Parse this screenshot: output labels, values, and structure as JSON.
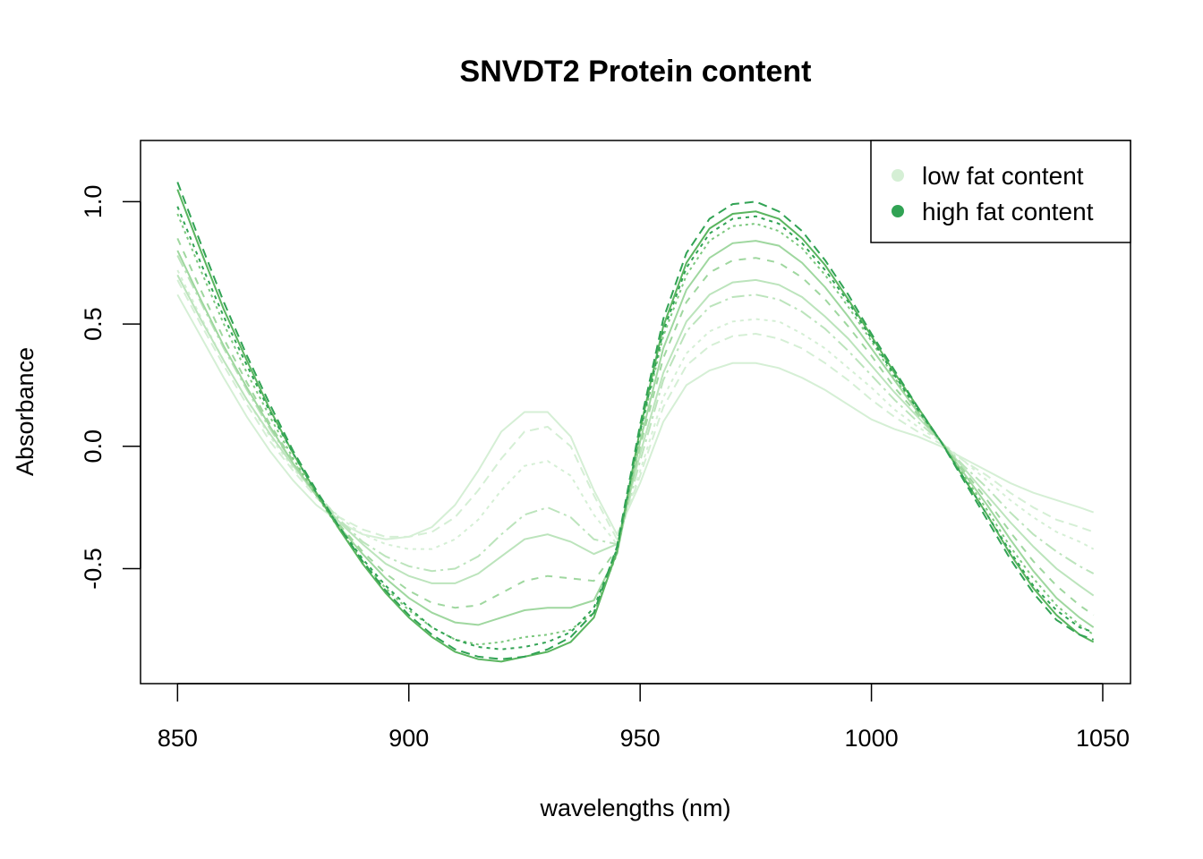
{
  "chart_data": {
    "type": "line",
    "title": "SNVDT2 Protein content",
    "xlabel": "wavelengths (nm)",
    "ylabel": "Absorbance",
    "xlim": [
      842,
      1056
    ],
    "ylim": [
      -0.97,
      1.25
    ],
    "x_ticks": [
      850,
      900,
      950,
      1000,
      1050
    ],
    "x_tick_labels": [
      "850",
      "900",
      "950",
      "1000",
      "1050"
    ],
    "y_ticks": [
      -0.5,
      0.0,
      0.5,
      1.0
    ],
    "y_tick_labels": [
      "-0.5",
      "0.0",
      "0.5",
      "1.0"
    ],
    "grid": false,
    "legend_position": "top-right",
    "legend": [
      {
        "label": "low fat content",
        "color": "#d5efd5"
      },
      {
        "label": "high fat content",
        "color": "#31a354"
      }
    ],
    "x": [
      850,
      855,
      860,
      865,
      870,
      875,
      880,
      885,
      890,
      895,
      900,
      905,
      910,
      915,
      920,
      925,
      930,
      935,
      940,
      945,
      950,
      955,
      960,
      965,
      970,
      975,
      980,
      985,
      990,
      995,
      1000,
      1005,
      1010,
      1015,
      1020,
      1025,
      1030,
      1035,
      1040,
      1045,
      1048
    ],
    "series": [
      {
        "color": "#d5efd5",
        "values": [
          0.62,
          0.45,
          0.28,
          0.12,
          -0.02,
          -0.14,
          -0.24,
          -0.31,
          -0.36,
          -0.38,
          -0.37,
          -0.33,
          -0.24,
          -0.1,
          0.06,
          0.14,
          0.14,
          0.04,
          -0.18,
          -0.36,
          -0.15,
          0.1,
          0.25,
          0.31,
          0.34,
          0.34,
          0.32,
          0.28,
          0.23,
          0.17,
          0.11,
          0.07,
          0.04,
          0.0,
          -0.05,
          -0.1,
          -0.15,
          -0.19,
          -0.22,
          -0.25,
          -0.27
        ]
      },
      {
        "color": "#d5efd5",
        "values": [
          0.68,
          0.5,
          0.33,
          0.17,
          0.02,
          -0.1,
          -0.21,
          -0.29,
          -0.34,
          -0.37,
          -0.37,
          -0.35,
          -0.29,
          -0.18,
          -0.05,
          0.06,
          0.08,
          0.0,
          -0.2,
          -0.38,
          -0.12,
          0.16,
          0.33,
          0.41,
          0.45,
          0.46,
          0.44,
          0.4,
          0.34,
          0.27,
          0.19,
          0.12,
          0.06,
          0.01,
          -0.06,
          -0.12,
          -0.19,
          -0.25,
          -0.3,
          -0.33,
          -0.35
        ]
      },
      {
        "color": "#d5efd5",
        "values": [
          0.72,
          0.53,
          0.35,
          0.19,
          0.04,
          -0.09,
          -0.2,
          -0.29,
          -0.36,
          -0.4,
          -0.42,
          -0.42,
          -0.38,
          -0.3,
          -0.18,
          -0.08,
          -0.06,
          -0.12,
          -0.28,
          -0.4,
          -0.1,
          0.2,
          0.38,
          0.47,
          0.51,
          0.52,
          0.51,
          0.46,
          0.4,
          0.32,
          0.24,
          0.15,
          0.08,
          0.02,
          -0.06,
          -0.14,
          -0.22,
          -0.29,
          -0.35,
          -0.39,
          -0.42
        ]
      },
      {
        "color": "#bce4bc",
        "values": [
          0.78,
          0.59,
          0.4,
          0.23,
          0.07,
          -0.07,
          -0.19,
          -0.3,
          -0.39,
          -0.45,
          -0.49,
          -0.51,
          -0.5,
          -0.45,
          -0.36,
          -0.28,
          -0.25,
          -0.29,
          -0.38,
          -0.4,
          -0.06,
          0.27,
          0.47,
          0.57,
          0.61,
          0.62,
          0.6,
          0.55,
          0.48,
          0.39,
          0.29,
          0.19,
          0.1,
          0.02,
          -0.08,
          -0.17,
          -0.27,
          -0.36,
          -0.43,
          -0.49,
          -0.52
        ]
      },
      {
        "color": "#bce4bc",
        "values": [
          0.7,
          0.52,
          0.35,
          0.19,
          0.05,
          -0.08,
          -0.2,
          -0.31,
          -0.4,
          -0.48,
          -0.53,
          -0.56,
          -0.56,
          -0.52,
          -0.45,
          -0.38,
          -0.36,
          -0.39,
          -0.44,
          -0.4,
          -0.03,
          0.3,
          0.51,
          0.62,
          0.67,
          0.68,
          0.66,
          0.61,
          0.53,
          0.44,
          0.33,
          0.22,
          0.12,
          0.02,
          -0.09,
          -0.2,
          -0.31,
          -0.41,
          -0.5,
          -0.57,
          -0.61
        ]
      },
      {
        "color": "#9fd79f",
        "values": [
          0.85,
          0.64,
          0.44,
          0.26,
          0.09,
          -0.06,
          -0.2,
          -0.32,
          -0.43,
          -0.52,
          -0.59,
          -0.64,
          -0.66,
          -0.65,
          -0.6,
          -0.55,
          -0.53,
          -0.54,
          -0.55,
          -0.42,
          0.0,
          0.36,
          0.59,
          0.71,
          0.76,
          0.77,
          0.75,
          0.69,
          0.6,
          0.49,
          0.37,
          0.24,
          0.13,
          0.02,
          -0.1,
          -0.22,
          -0.35,
          -0.47,
          -0.57,
          -0.65,
          -0.69
        ]
      },
      {
        "color": "#9fd79f",
        "values": [
          0.8,
          0.6,
          0.41,
          0.24,
          0.08,
          -0.07,
          -0.2,
          -0.33,
          -0.44,
          -0.54,
          -0.62,
          -0.68,
          -0.72,
          -0.73,
          -0.7,
          -0.67,
          -0.66,
          -0.66,
          -0.63,
          -0.44,
          0.02,
          0.4,
          0.64,
          0.77,
          0.83,
          0.84,
          0.82,
          0.75,
          0.65,
          0.53,
          0.4,
          0.27,
          0.14,
          0.02,
          -0.11,
          -0.24,
          -0.38,
          -0.51,
          -0.62,
          -0.7,
          -0.74
        ]
      },
      {
        "color": "#7cc87e",
        "values": [
          0.95,
          0.72,
          0.5,
          0.3,
          0.12,
          -0.05,
          -0.2,
          -0.34,
          -0.47,
          -0.58,
          -0.67,
          -0.74,
          -0.79,
          -0.81,
          -0.8,
          -0.78,
          -0.77,
          -0.75,
          -0.68,
          -0.44,
          0.05,
          0.45,
          0.7,
          0.84,
          0.9,
          0.91,
          0.88,
          0.81,
          0.7,
          0.57,
          0.43,
          0.28,
          0.15,
          0.02,
          -0.12,
          -0.26,
          -0.41,
          -0.54,
          -0.65,
          -0.73,
          -0.77
        ]
      },
      {
        "color": "#5ab55f",
        "values": [
          1.05,
          0.8,
          0.56,
          0.35,
          0.15,
          -0.03,
          -0.19,
          -0.34,
          -0.48,
          -0.6,
          -0.7,
          -0.78,
          -0.84,
          -0.87,
          -0.88,
          -0.86,
          -0.84,
          -0.8,
          -0.7,
          -0.43,
          0.07,
          0.49,
          0.75,
          0.89,
          0.95,
          0.96,
          0.93,
          0.85,
          0.74,
          0.6,
          0.45,
          0.3,
          0.16,
          0.02,
          -0.13,
          -0.28,
          -0.44,
          -0.58,
          -0.69,
          -0.77,
          -0.8
        ]
      },
      {
        "color": "#31a354",
        "values": [
          1.08,
          0.83,
          0.59,
          0.37,
          0.17,
          -0.02,
          -0.18,
          -0.33,
          -0.47,
          -0.59,
          -0.69,
          -0.77,
          -0.83,
          -0.86,
          -0.87,
          -0.86,
          -0.83,
          -0.78,
          -0.68,
          -0.41,
          0.09,
          0.52,
          0.79,
          0.93,
          0.99,
          1.0,
          0.96,
          0.88,
          0.76,
          0.62,
          0.46,
          0.31,
          0.16,
          0.02,
          -0.14,
          -0.3,
          -0.46,
          -0.6,
          -0.71,
          -0.77,
          -0.79
        ]
      },
      {
        "color": "#31a354",
        "values": [
          0.98,
          0.75,
          0.53,
          0.33,
          0.14,
          -0.03,
          -0.19,
          -0.33,
          -0.46,
          -0.57,
          -0.66,
          -0.74,
          -0.79,
          -0.82,
          -0.83,
          -0.82,
          -0.8,
          -0.76,
          -0.66,
          -0.42,
          0.06,
          0.47,
          0.73,
          0.87,
          0.93,
          0.94,
          0.91,
          0.83,
          0.72,
          0.59,
          0.44,
          0.29,
          0.15,
          0.02,
          -0.13,
          -0.28,
          -0.43,
          -0.57,
          -0.67,
          -0.74,
          -0.76
        ]
      }
    ]
  }
}
